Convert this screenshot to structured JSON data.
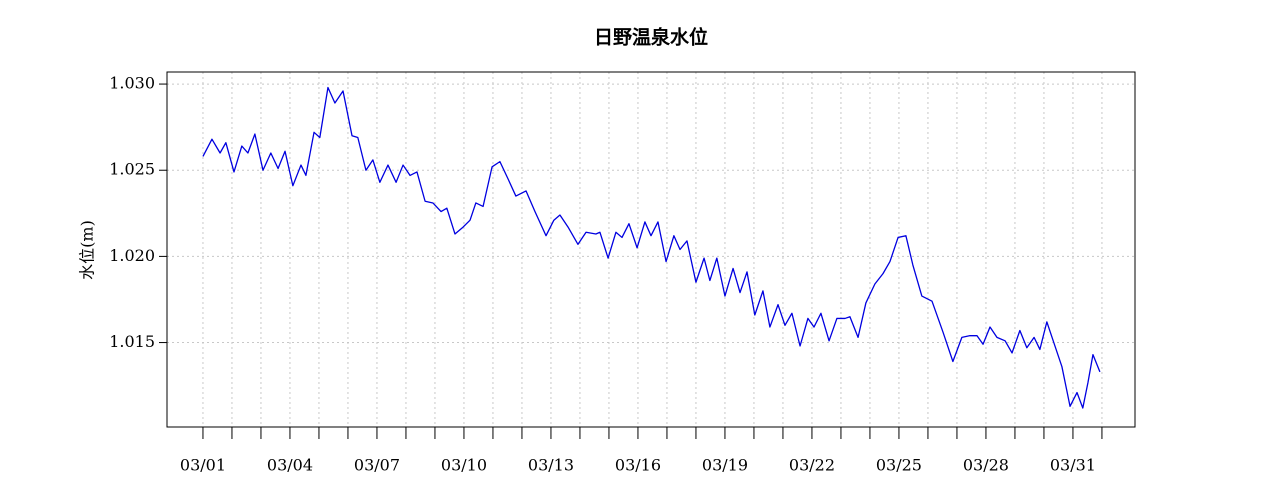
{
  "chart_data": {
    "type": "line",
    "title": "日野温泉水位",
    "y_label": "水位(m)",
    "xlim": [
      -1.24,
      32.14
    ],
    "xticks": [
      {
        "value": 0,
        "label": "03/01"
      },
      {
        "value": 3,
        "label": "03/04"
      },
      {
        "value": 6,
        "label": "03/07"
      },
      {
        "value": 9,
        "label": "03/10"
      },
      {
        "value": 12,
        "label": "03/13"
      },
      {
        "value": 15,
        "label": "03/16"
      },
      {
        "value": 18,
        "label": "03/19"
      },
      {
        "value": 21,
        "label": "03/22"
      },
      {
        "value": 24,
        "label": "03/25"
      },
      {
        "value": 27,
        "label": "03/28"
      },
      {
        "value": 30,
        "label": "03/31"
      }
    ],
    "xminor_ticks": [
      0,
      1,
      2,
      3,
      4,
      5,
      6,
      7,
      8,
      9,
      10,
      11,
      12,
      13,
      14,
      15,
      16,
      17,
      18,
      19,
      20,
      21,
      22,
      23,
      24,
      25,
      26,
      27,
      28,
      29,
      30,
      31
    ],
    "ylim": [
      1.0101,
      1.0307
    ],
    "yticks": [
      {
        "value": 1.03,
        "label": "1.030"
      },
      1.025,
      {
        "value": 1.02,
        "label": "1.020"
      },
      1.015
    ],
    "grid": true,
    "series": [
      {
        "name": "水位",
        "color": "#0000e0",
        "x": [
          0,
          0.31,
          0.59,
          0.79,
          1.07,
          1.34,
          1.55,
          1.79,
          2.07,
          2.34,
          2.59,
          2.83,
          3.1,
          3.38,
          3.55,
          3.83,
          4.03,
          4.31,
          4.55,
          4.83,
          5.14,
          5.34,
          5.62,
          5.86,
          6.1,
          6.38,
          6.66,
          6.9,
          7.14,
          7.38,
          7.66,
          7.93,
          8.21,
          8.41,
          8.69,
          8.97,
          9.21,
          9.41,
          9.66,
          9.97,
          10.24,
          10.52,
          10.79,
          11.14,
          11.45,
          11.83,
          12.1,
          12.31,
          12.59,
          12.93,
          13.21,
          13.55,
          13.69,
          13.97,
          14.24,
          14.45,
          14.69,
          14.97,
          15.24,
          15.45,
          15.69,
          15.97,
          16.24,
          16.45,
          16.69,
          17.0,
          17.28,
          17.48,
          17.72,
          18.0,
          18.28,
          18.52,
          18.76,
          19.03,
          19.31,
          19.55,
          19.83,
          20.07,
          20.31,
          20.59,
          20.86,
          21.07,
          21.31,
          21.59,
          21.86,
          22.14,
          22.31,
          22.59,
          22.86,
          23.17,
          23.45,
          23.69,
          23.97,
          24.24,
          24.48,
          24.79,
          25.14,
          25.52,
          25.86,
          26.17,
          26.45,
          26.69,
          26.9,
          27.14,
          27.38,
          27.66,
          27.9,
          28.17,
          28.41,
          28.66,
          28.86,
          29.1,
          29.34,
          29.62,
          29.9,
          30.14,
          30.34,
          30.52,
          30.69,
          30.93
        ],
        "values": [
          1.0258,
          1.0268,
          1.026,
          1.0266,
          1.0249,
          1.0264,
          1.026,
          1.0271,
          1.025,
          1.026,
          1.0251,
          1.0261,
          1.0241,
          1.0253,
          1.0247,
          1.0272,
          1.0269,
          1.0298,
          1.0289,
          1.0296,
          1.027,
          1.0269,
          1.025,
          1.0256,
          1.0243,
          1.0253,
          1.0243,
          1.0253,
          1.0247,
          1.0249,
          1.0232,
          1.0231,
          1.0226,
          1.0228,
          1.0213,
          1.0217,
          1.0221,
          1.0231,
          1.0229,
          1.0252,
          1.0255,
          1.0245,
          1.0235,
          1.0238,
          1.0226,
          1.0212,
          1.0221,
          1.0224,
          1.0217,
          1.0207,
          1.0214,
          1.0213,
          1.0214,
          1.0199,
          1.0214,
          1.0211,
          1.0219,
          1.0205,
          1.022,
          1.0212,
          1.022,
          1.0197,
          1.0212,
          1.0204,
          1.0209,
          1.0185,
          1.0199,
          1.0186,
          1.0199,
          1.0177,
          1.0193,
          1.0179,
          1.0191,
          1.0166,
          1.018,
          1.0159,
          1.0172,
          1.016,
          1.0167,
          1.0148,
          1.0164,
          1.0159,
          1.0167,
          1.0151,
          1.0164,
          1.0164,
          1.0165,
          1.0153,
          1.0173,
          1.0184,
          1.019,
          1.0197,
          1.0211,
          1.0212,
          1.0195,
          1.0177,
          1.0174,
          1.0156,
          1.0139,
          1.0153,
          1.0154,
          1.0154,
          1.0149,
          1.0159,
          1.0153,
          1.0151,
          1.0144,
          1.0157,
          1.0147,
          1.0153,
          1.0146,
          1.0162,
          1.015,
          1.0136,
          1.0113,
          1.0121,
          1.0112,
          1.0127,
          1.0143,
          1.0133
        ]
      }
    ]
  }
}
